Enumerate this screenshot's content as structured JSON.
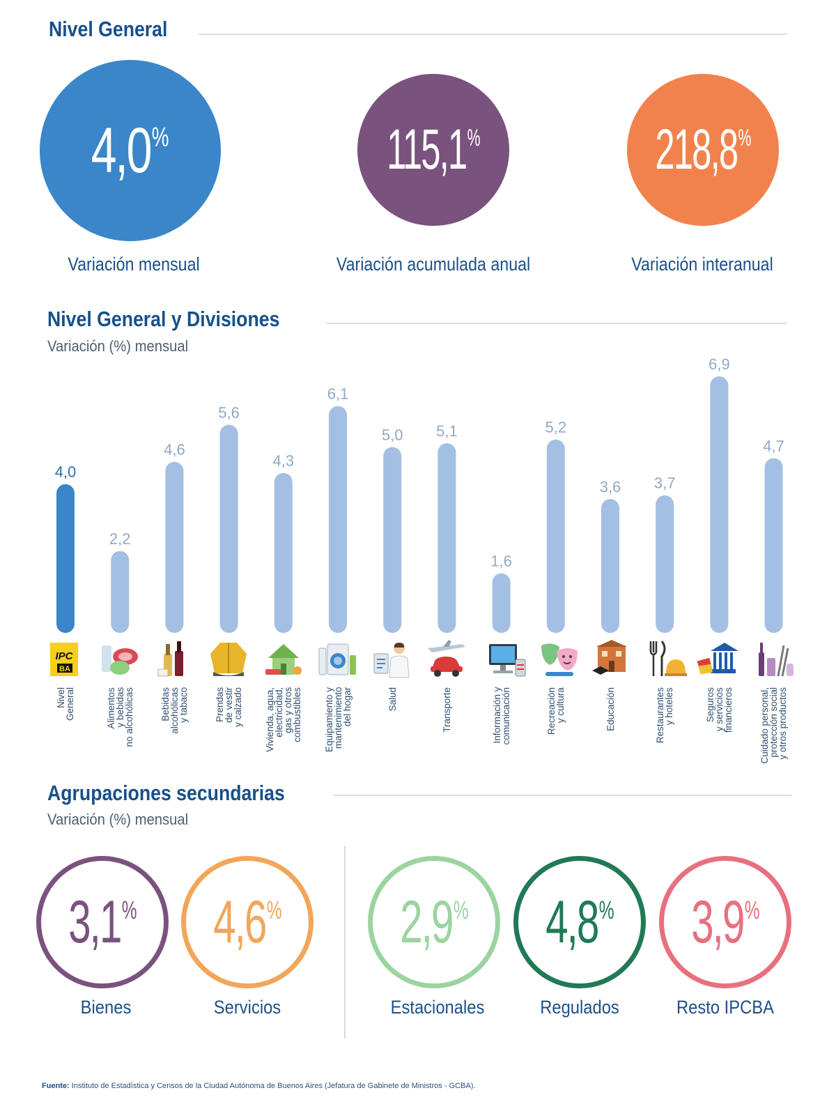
{
  "nivel_general": {
    "title": "Nivel General",
    "cards": [
      {
        "value": "4,0",
        "unit": "%",
        "label": "Variación mensual",
        "color": "#3a86c9"
      },
      {
        "value": "115,1",
        "unit": "%",
        "label": "Variación acumulada anual",
        "color": "#7a527e"
      },
      {
        "value": "218,8",
        "unit": "%",
        "label": "Variación interanual",
        "color": "#f2824d"
      }
    ]
  },
  "divisiones": {
    "title": "Nivel General y Divisiones",
    "subtitle": "Variación (%) mensual"
  },
  "chart_data": {
    "type": "bar",
    "title": "Nivel General y Divisiones",
    "subtitle": "Variación (%) mensual",
    "categories": [
      "Nivel\nGeneral",
      "Alimentos\ny bebidas\nno alcohólicas",
      "Bebidas\nalcohólicas\ny tabaco",
      "Prendas\nde vestir\ny calzado",
      "Vivienda, agua,\nelectricidad,\ngas y otros\ncombustibles",
      "Equipamiento y\nmantenimiento\ndel hogar",
      "Salud",
      "Transporte",
      "Información y\ncomunicación",
      "Recreación\ny cultura",
      "Educación",
      "Restaurantes\ny hoteles",
      "Seguros\ny servicios\nfinancieros",
      "Cuidado personal,\nprotección social\ny otros productos"
    ],
    "values": [
      4.0,
      2.2,
      4.6,
      5.6,
      4.3,
      6.1,
      5.0,
      5.1,
      1.6,
      5.2,
      3.6,
      3.7,
      6.9,
      4.7
    ],
    "value_labels": [
      "4,0",
      "2,2",
      "4,6",
      "5,6",
      "4,3",
      "6,1",
      "5,0",
      "5,1",
      "1,6",
      "5,2",
      "3,6",
      "3,7",
      "6,9",
      "4,7"
    ],
    "highlight_index": 0,
    "colors": {
      "highlight": "#3a86c9",
      "bar": "#a3bfe3",
      "label": "#90a9c7",
      "highlight_label": "#2f6fae"
    },
    "ylim": [
      0,
      7.2
    ],
    "icons": [
      "ipc-ba-logo-icon",
      "food-icon",
      "bottles-icon",
      "jacket-icon",
      "house-icon",
      "washing-machine-icon",
      "doctor-icon",
      "transport-icon",
      "computer-icon",
      "theatre-masks-icon",
      "school-icon",
      "restaurant-icon",
      "bank-icon",
      "personal-care-icon"
    ]
  },
  "agrupaciones": {
    "title": "Agrupaciones secundarias",
    "subtitle": "Variación (%) mensual",
    "items": [
      {
        "value": "3,1",
        "unit": "%",
        "label": "Bienes",
        "color": "#7a527e"
      },
      {
        "value": "4,6",
        "unit": "%",
        "label": "Servicios",
        "color": "#f2a65a"
      },
      {
        "value": "2,9",
        "unit": "%",
        "label": "Estacionales",
        "color": "#9bd49f"
      },
      {
        "value": "4,8",
        "unit": "%",
        "label": "Regulados",
        "color": "#1f7a55"
      },
      {
        "value": "3,9",
        "unit": "%",
        "label": "Resto IPCBA",
        "color": "#e8707e"
      }
    ]
  },
  "footer": {
    "label": "Fuente:",
    "text": "Instituto de Estadística y Censos de la Ciudad Autónoma de Buenos Aires (Jefatura de Gabinete de Ministros - GCBA)."
  }
}
